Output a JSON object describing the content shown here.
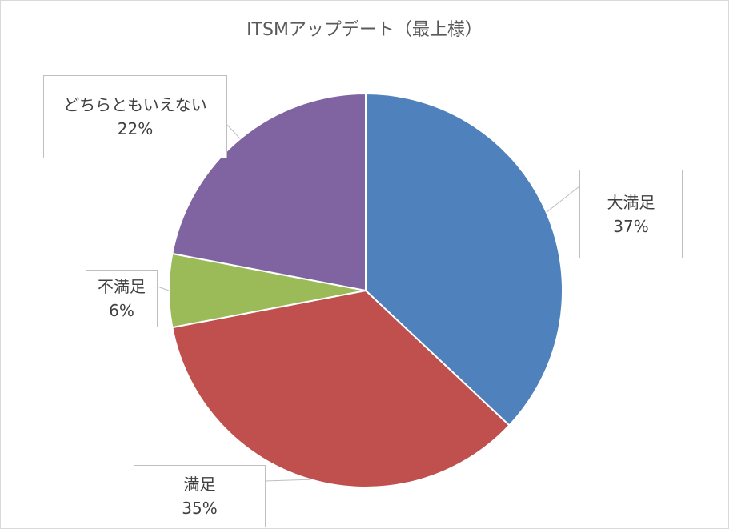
{
  "chart_data": {
    "type": "pie",
    "title": "ITSMアップデート（最上様）",
    "categories": [
      "大満足",
      "満足",
      "不満足",
      "どちらともいえない"
    ],
    "values": [
      37,
      35,
      6,
      22
    ],
    "data_labels": [
      "37%",
      "35%",
      "6%",
      "22%"
    ],
    "colors": [
      "#4f81bd",
      "#c0504d",
      "#9bbb59",
      "#8064a2"
    ],
    "legend": "none",
    "label_style": "callout"
  }
}
